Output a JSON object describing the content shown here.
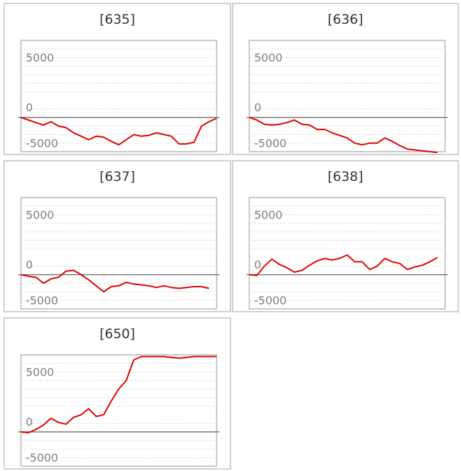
{
  "chart_data": [
    {
      "type": "line",
      "title": "[635]",
      "ylim": [
        -6000,
        7000
      ],
      "yticks": [
        5000,
        0,
        -5000
      ],
      "grid": true,
      "series": [
        {
          "color": "#e00000",
          "x": [
            0,
            1,
            2,
            3,
            4,
            5,
            6,
            7,
            8,
            9,
            10,
            11,
            12,
            13,
            14,
            15,
            16,
            17,
            18,
            19,
            20,
            21,
            22,
            23,
            24,
            25,
            26
          ],
          "y": [
            -2000,
            -2300,
            -2600,
            -2900,
            -2500,
            -3000,
            -3200,
            -3800,
            -4200,
            -4600,
            -4200,
            -4300,
            -4800,
            -5200,
            -4600,
            -4000,
            -4200,
            -4100,
            -3800,
            -4000,
            -4200,
            -5100,
            -5100,
            -4900,
            -3000,
            -2500,
            -2100
          ]
        }
      ]
    },
    {
      "type": "line",
      "title": "[636]",
      "ylim": [
        -6000,
        7000
      ],
      "yticks": [
        5000,
        0,
        -5000
      ],
      "grid": true,
      "series": [
        {
          "color": "#e00000",
          "x": [
            0,
            1,
            2,
            3,
            4,
            5,
            6,
            7,
            8,
            9,
            10,
            11,
            12,
            13,
            14,
            15,
            16,
            17,
            18,
            19,
            20,
            21,
            22,
            23,
            24,
            25
          ],
          "y": [
            -2000,
            -2300,
            -2800,
            -2900,
            -2800,
            -2600,
            -2300,
            -2800,
            -2900,
            -3400,
            -3400,
            -3800,
            -4100,
            -4400,
            -5000,
            -5200,
            -5000,
            -5000,
            -4400,
            -4800,
            -5300,
            -5700,
            -5800,
            -5900,
            -6000,
            -6100
          ]
        }
      ]
    },
    {
      "type": "line",
      "title": "[637]",
      "ylim": [
        -6000,
        7000
      ],
      "yticks": [
        5000,
        0,
        -5000
      ],
      "grid": true,
      "series": [
        {
          "color": "#e00000",
          "x": [
            0,
            1,
            2,
            3,
            4,
            5,
            6,
            7,
            8,
            9,
            10,
            11,
            12,
            13,
            14,
            15,
            16,
            17,
            18,
            19,
            20,
            21,
            22,
            23,
            24,
            25
          ],
          "y": [
            -2000,
            -2200,
            -2300,
            -3000,
            -2500,
            -2300,
            -1600,
            -1500,
            -2000,
            -2600,
            -3300,
            -4000,
            -3400,
            -3300,
            -2900,
            -3100,
            -3200,
            -3300,
            -3500,
            -3300,
            -3500,
            -3600,
            -3500,
            -3400,
            -3400,
            -3600
          ]
        }
      ]
    },
    {
      "type": "line",
      "title": "[638]",
      "ylim": [
        -6000,
        7000
      ],
      "yticks": [
        5000,
        0,
        -5000
      ],
      "grid": true,
      "series": [
        {
          "color": "#e00000",
          "x": [
            0,
            1,
            2,
            3,
            4,
            5,
            6,
            7,
            8,
            9,
            10,
            11,
            12,
            13,
            14,
            15,
            16,
            17,
            18,
            19,
            20,
            21,
            22,
            23,
            24,
            25
          ],
          "y": [
            -2000,
            -2100,
            -1000,
            -200,
            -800,
            -1200,
            -1700,
            -1500,
            -900,
            -400,
            -100,
            -300,
            -100,
            300,
            -500,
            -500,
            -1400,
            -1000,
            -100,
            -500,
            -700,
            -1400,
            -1100,
            -900,
            -500,
            0
          ]
        }
      ]
    },
    {
      "type": "line",
      "title": "[650]",
      "ylim": [
        -6000,
        7000
      ],
      "yticks": [
        5000,
        0,
        -5000
      ],
      "grid": true,
      "series": [
        {
          "color": "#e00000",
          "x": [
            0,
            1,
            2,
            3,
            4,
            5,
            6,
            7,
            8,
            9,
            10,
            11,
            12,
            13,
            14,
            15,
            16,
            17,
            18,
            19,
            20,
            21,
            22,
            23,
            24,
            25,
            26
          ],
          "y": [
            -2000,
            -2100,
            -1700,
            -1200,
            -400,
            -900,
            -1100,
            -300,
            0,
            700,
            -200,
            0,
            1600,
            3000,
            4000,
            6400,
            6800,
            6800,
            6800,
            6800,
            6700,
            6600,
            6700,
            6800,
            6800,
            6800,
            6800
          ]
        }
      ]
    }
  ]
}
